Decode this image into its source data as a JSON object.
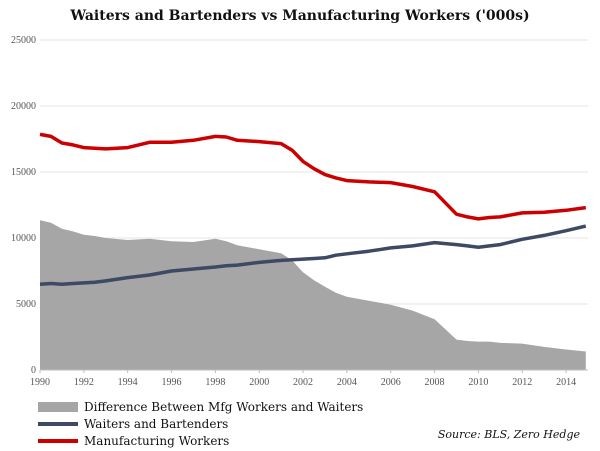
{
  "chart_data": {
    "type": "area",
    "title": "Waiters and Bartenders vs Manufacturing Workers ('000s)",
    "source": "Source: BLS, Zero Hedge",
    "xlabel": "",
    "ylabel": "",
    "xlim": [
      1990,
      2015
    ],
    "ylim": [
      0,
      25000
    ],
    "grid": true,
    "legend_position": "bottom-left",
    "x_ticks": [
      1990,
      1992,
      1994,
      1996,
      1998,
      2000,
      2002,
      2004,
      2006,
      2008,
      2010,
      2012,
      2014
    ],
    "y_ticks": [
      0,
      5000,
      10000,
      15000,
      20000,
      25000
    ],
    "x": [
      1990,
      1990.5,
      1991,
      1991.5,
      1992,
      1992.5,
      1993,
      1994,
      1995,
      1996,
      1997,
      1998,
      1998.5,
      1999,
      2000,
      2001,
      2001.5,
      2002,
      2002.5,
      2003,
      2003.5,
      2004,
      2005,
      2006,
      2007,
      2008,
      2009,
      2009.5,
      2010,
      2010.5,
      2011,
      2012,
      2013,
      2014,
      2014.9
    ],
    "series": [
      {
        "name": "Difference Between Mfg Workers and Waiters",
        "kind": "area",
        "color": "#a6a6a6",
        "values": [
          11350,
          11150,
          10700,
          10500,
          10250,
          10150,
          10000,
          9850,
          9950,
          9750,
          9700,
          9950,
          9750,
          9450,
          9150,
          8850,
          8300,
          7400,
          6800,
          6300,
          5850,
          5550,
          5250,
          4950,
          4500,
          3850,
          2300,
          2200,
          2150,
          2150,
          2050,
          2000,
          1750,
          1550,
          1400
        ]
      },
      {
        "name": "Waiters and Bartenders",
        "kind": "line",
        "color": "#3d4a63",
        "values": [
          6500,
          6550,
          6500,
          6550,
          6600,
          6650,
          6750,
          7000,
          7200,
          7500,
          7650,
          7800,
          7900,
          7950,
          8150,
          8300,
          8350,
          8400,
          8450,
          8500,
          8700,
          8800,
          9000,
          9250,
          9400,
          9650,
          9500,
          9400,
          9300,
          9400,
          9500,
          9900,
          10200,
          10550,
          10900
        ]
      },
      {
        "name": "Manufacturing Workers",
        "kind": "line",
        "color": "#cc0000",
        "values": [
          17850,
          17700,
          17200,
          17050,
          16850,
          16800,
          16750,
          16850,
          17250,
          17250,
          17400,
          17700,
          17650,
          17400,
          17300,
          17150,
          16650,
          15800,
          15250,
          14800,
          14550,
          14350,
          14250,
          14200,
          13900,
          13500,
          11800,
          11600,
          11450,
          11550,
          11600,
          11900,
          11950,
          12100,
          12300
        ]
      }
    ]
  }
}
